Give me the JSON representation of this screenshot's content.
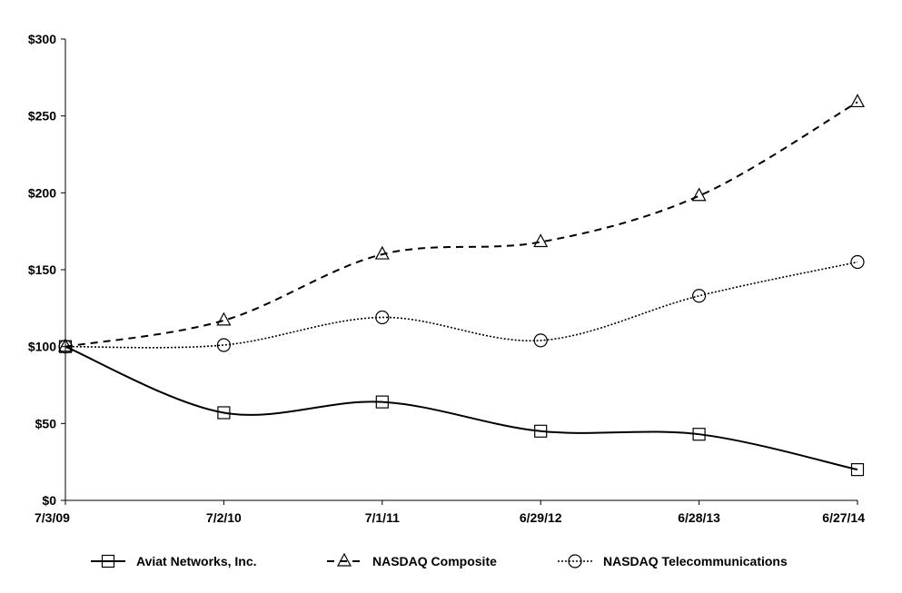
{
  "chart_data": {
    "type": "line",
    "title": "",
    "xlabel": "",
    "ylabel": "",
    "categories": [
      "7/3/09",
      "7/2/10",
      "7/1/11",
      "6/29/12",
      "6/28/13",
      "6/27/14"
    ],
    "ylim": [
      0,
      300
    ],
    "yticks": [
      0,
      50,
      100,
      150,
      200,
      250,
      300
    ],
    "ytick_labels": [
      "$0",
      "$50",
      "$100",
      "$150",
      "$200",
      "$250",
      "$300"
    ],
    "grid": false,
    "legend_position": "bottom",
    "series": [
      {
        "name": "Aviat Networks, Inc.",
        "marker": "square",
        "style": "solid",
        "values": [
          100,
          57,
          64,
          45,
          43,
          20
        ]
      },
      {
        "name": "NASDAQ Composite",
        "marker": "triangle",
        "style": "dashed",
        "values": [
          100,
          117,
          160,
          168,
          198,
          259
        ]
      },
      {
        "name": "NASDAQ Telecommunications",
        "marker": "circle",
        "style": "dotted",
        "values": [
          100,
          101,
          119,
          104,
          133,
          155
        ]
      }
    ]
  }
}
